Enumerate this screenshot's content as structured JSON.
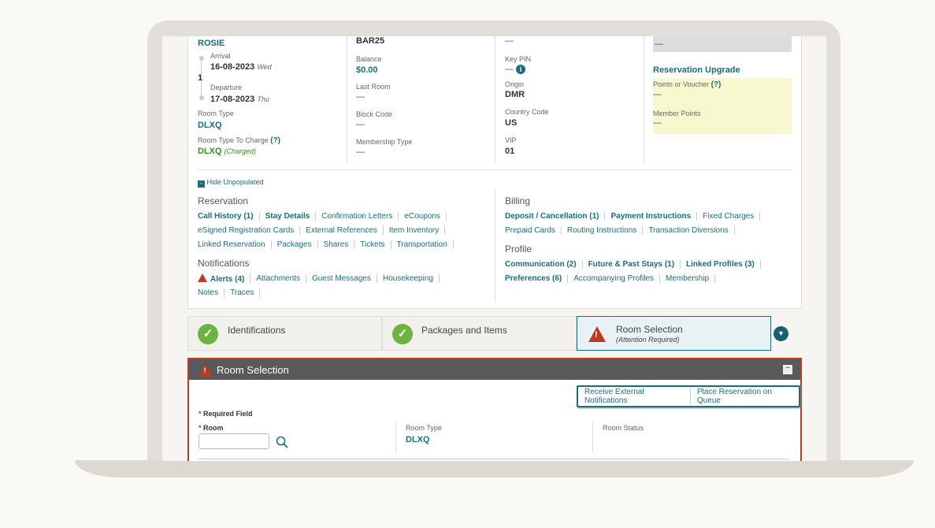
{
  "guest": {
    "name": "ROSIE",
    "arrival_label": "Arrival",
    "arrival_date": "16-08-2023",
    "arrival_day": "Wed",
    "nights": "1",
    "departure_label": "Departure",
    "departure_date": "17-08-2023",
    "departure_day": "Thu",
    "room_type_label": "Room Type",
    "room_type": "DLXQ",
    "room_type_charge_label": "Room Type To Charge",
    "help": "(?)",
    "room_type_charge": "DLXQ",
    "charged": "(Charged)"
  },
  "rate": {
    "code": "BAR25",
    "balance_label": "Balance",
    "balance": "$0.00",
    "last_room_label": "Last Room",
    "last_room": "—",
    "block_code_label": "Block Code",
    "block_code": "—",
    "membership_type_label": "Membership Type",
    "membership_type": "—"
  },
  "misc": {
    "top": "—",
    "key_pin_label": "Key PIN",
    "key_pin": "—",
    "origin_label": "Origin",
    "origin": "DMR",
    "country_label": "Country Code",
    "country": "US",
    "vip_label": "VIP",
    "vip": "01"
  },
  "upgrade": {
    "top": "—",
    "title": "Reservation Upgrade",
    "points_label": "Points or Voucher",
    "help": "(?)",
    "points": "—",
    "member_points_label": "Member Points",
    "member_points": "—"
  },
  "hide_unpopulated": "Hide Unpopulated",
  "reservation": {
    "title": "Reservation",
    "rows": [
      [
        "Call History (1)",
        "Stay Details",
        "Confirmation Letters",
        "eCoupons"
      ],
      [
        "eSigned Registration Cards",
        "External References",
        "Item Inventory"
      ],
      [
        "Linked Reservation",
        "Packages",
        "Shares",
        "Tickets",
        "Transportation"
      ]
    ]
  },
  "notifications": {
    "title": "Notifications",
    "rows": [
      [
        "Alerts (4)",
        "Attachments",
        "Guest Messages",
        "Housekeeping"
      ],
      [
        "Notes",
        "Traces"
      ]
    ]
  },
  "billing": {
    "title": "Billing",
    "rows": [
      [
        "Deposit / Cancellation (1)",
        "Payment Instructions",
        "Fixed Charges"
      ],
      [
        "Prepaid Cards",
        "Routing Instructions",
        "Transaction Diversions"
      ]
    ]
  },
  "profile": {
    "title": "Profile",
    "rows": [
      [
        "Communication (2)",
        "Future & Past Stays (1)",
        "Linked Profiles (3)"
      ],
      [
        "Preferences (6)",
        "Accompanying Profiles",
        "Membership"
      ]
    ]
  },
  "steps": [
    {
      "label": "Identifications",
      "status": "complete"
    },
    {
      "label": "Packages and Items",
      "status": "complete"
    },
    {
      "label": "Room Selection",
      "sub": "(Attention Required)",
      "status": "attention"
    }
  ],
  "room_selection": {
    "title": "Room Selection",
    "receive_ext": "Receive External Notifications",
    "place_queue": "Place Reservation on Queue",
    "required": "Required Field",
    "room_label": "Room",
    "room_value": "",
    "room_type_label": "Room Type",
    "room_type": "DLXQ",
    "room_status_label": "Room Status",
    "star": "*"
  },
  "colors": {
    "accent": "#1a6e7a",
    "warning": "#c1381a",
    "success": "#6db33f",
    "header": "#58595b"
  }
}
